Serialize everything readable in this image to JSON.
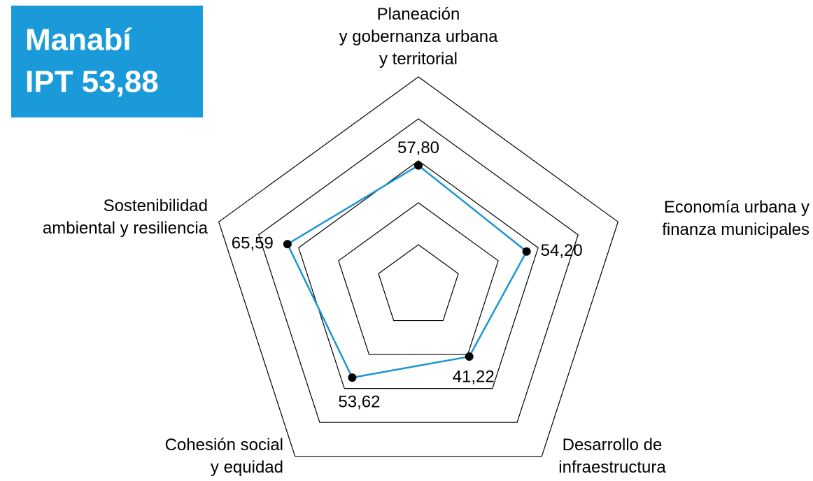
{
  "chart_data": {
    "type": "radar",
    "title": "Manabí",
    "subtitle": "IPT 53,88",
    "title_box_color": "#1a9ad9",
    "categories": [
      [
        "Planeación",
        "y gobernanza urbana",
        "y territorial"
      ],
      [
        "Economía urbana y",
        "finanza municipales"
      ],
      [
        "Desarrollo de",
        "infraestructura"
      ],
      [
        "Cohesión social",
        "y equidad"
      ],
      [
        "Sostenibilidad",
        "ambiental y resiliencia"
      ]
    ],
    "values": [
      57.8,
      54.2,
      41.22,
      53.62,
      65.59
    ],
    "value_labels": [
      "57,80",
      "54,20",
      "41,22",
      "53,62",
      "65,59"
    ],
    "color": "#1a96d4",
    "rlim": [
      0,
      100
    ],
    "rticks": [
      20,
      40,
      60,
      80,
      100
    ],
    "grid": true
  }
}
